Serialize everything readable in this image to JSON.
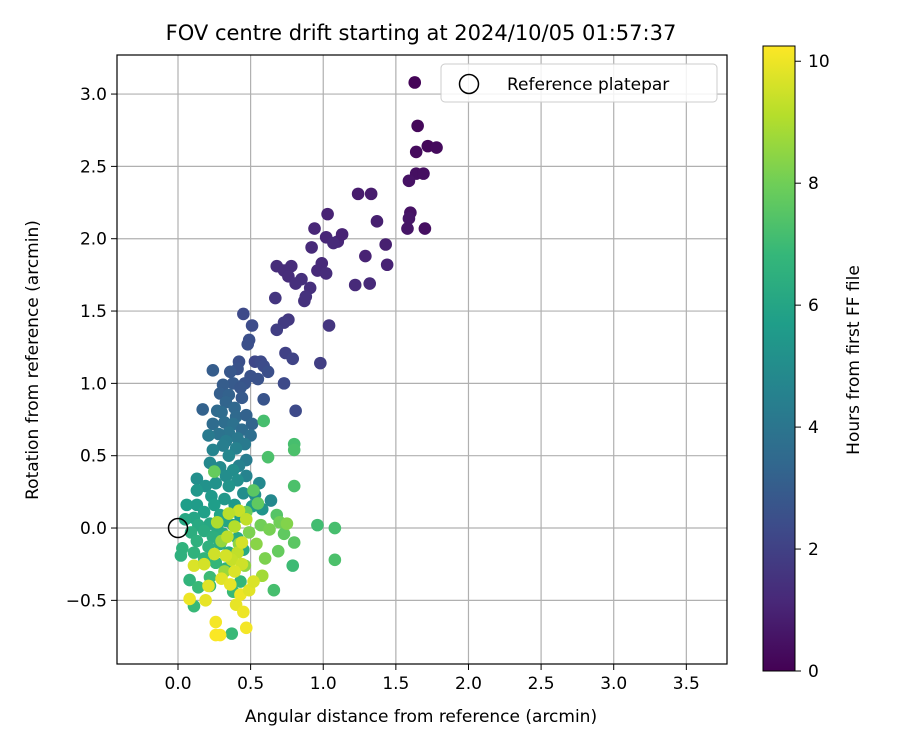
{
  "chart_data": {
    "type": "scatter",
    "title": "FOV centre drift starting at 2024/10/05 01:57:37",
    "xlabel": "Angular distance from reference (arcmin)",
    "ylabel": "Rotation from reference (arcmin)",
    "xlim": [
      -0.42,
      3.78
    ],
    "ylim": [
      -0.94,
      3.27
    ],
    "xticks": [
      0.0,
      0.5,
      1.0,
      1.5,
      2.0,
      2.5,
      3.0,
      3.5
    ],
    "xtick_labels": [
      "0.0",
      "0.5",
      "1.0",
      "1.5",
      "2.0",
      "2.5",
      "3.0",
      "3.5"
    ],
    "yticks": [
      -0.5,
      0.0,
      0.5,
      1.0,
      1.5,
      2.0,
      2.5,
      3.0
    ],
    "ytick_labels": [
      "−0.5",
      "0.0",
      "0.5",
      "1.0",
      "1.5",
      "2.0",
      "2.5",
      "3.0"
    ],
    "grid": true,
    "legend": {
      "placement": "upper right",
      "entry": "Reference platepar"
    },
    "reference_point": {
      "x": 0.0,
      "y": 0.0
    },
    "colorbar": {
      "label": "Hours from first FF file",
      "range": [
        0,
        10.25
      ],
      "ticks": [
        0,
        2,
        4,
        6,
        8,
        10
      ],
      "tick_labels": [
        "0",
        "2",
        "4",
        "6",
        "8",
        "10"
      ],
      "colormap": [
        "#440154",
        "#482878",
        "#3e4989",
        "#31688e",
        "#26828e",
        "#1f9e89",
        "#35b779",
        "#6ece58",
        "#b5de2b",
        "#fde725"
      ]
    },
    "series": [
      {
        "points": [
          [
            1.63,
            3.08,
            0.1
          ],
          [
            1.65,
            2.78,
            0.2
          ],
          [
            1.64,
            2.6,
            0.3
          ],
          [
            1.72,
            2.64,
            0.2
          ],
          [
            1.78,
            2.63,
            0.3
          ],
          [
            1.64,
            2.45,
            0.4
          ],
          [
            1.69,
            2.45,
            0.4
          ],
          [
            1.59,
            2.4,
            0.5
          ],
          [
            1.6,
            2.18,
            0.5
          ],
          [
            1.59,
            2.14,
            0.6
          ],
          [
            1.58,
            2.07,
            0.6
          ],
          [
            1.7,
            2.07,
            0.4
          ],
          [
            1.24,
            2.31,
            0.8
          ],
          [
            1.33,
            2.31,
            0.8
          ],
          [
            1.03,
            2.17,
            1.0
          ],
          [
            1.37,
            2.12,
            0.9
          ],
          [
            0.94,
            2.07,
            1.1
          ],
          [
            1.02,
            2.01,
            1.1
          ],
          [
            1.1,
            1.98,
            1.1
          ],
          [
            1.13,
            2.03,
            1.0
          ],
          [
            1.07,
            1.97,
            1.2
          ],
          [
            1.43,
            1.96,
            0.9
          ],
          [
            0.92,
            1.94,
            1.2
          ],
          [
            1.29,
            1.88,
            1.0
          ],
          [
            0.99,
            1.83,
            1.2
          ],
          [
            0.96,
            1.78,
            1.2
          ],
          [
            0.68,
            1.81,
            1.3
          ],
          [
            0.78,
            1.81,
            1.3
          ],
          [
            0.73,
            1.78,
            1.3
          ],
          [
            1.02,
            1.76,
            1.3
          ],
          [
            0.76,
            1.74,
            1.3
          ],
          [
            0.85,
            1.72,
            1.4
          ],
          [
            0.81,
            1.69,
            1.4
          ],
          [
            0.91,
            1.66,
            1.4
          ],
          [
            1.22,
            1.68,
            1.2
          ],
          [
            1.32,
            1.69,
            1.2
          ],
          [
            1.44,
            1.82,
            1.0
          ],
          [
            0.88,
            1.6,
            1.5
          ],
          [
            0.87,
            1.57,
            1.5
          ],
          [
            0.67,
            1.59,
            1.6
          ],
          [
            0.76,
            1.44,
            1.7
          ],
          [
            1.04,
            1.4,
            1.6
          ],
          [
            0.73,
            1.42,
            1.8
          ],
          [
            0.68,
            1.37,
            1.9
          ],
          [
            0.98,
            1.14,
            1.9
          ],
          [
            0.45,
            1.48,
            2.3
          ],
          [
            0.51,
            1.4,
            2.4
          ],
          [
            0.49,
            1.3,
            2.5
          ],
          [
            0.48,
            1.27,
            2.5
          ],
          [
            0.74,
            1.21,
            2.0
          ],
          [
            0.79,
            1.17,
            2.1
          ],
          [
            0.53,
            1.15,
            2.2
          ],
          [
            0.57,
            1.15,
            2.3
          ],
          [
            0.59,
            1.12,
            2.4
          ],
          [
            0.42,
            1.15,
            2.5
          ],
          [
            0.41,
            1.1,
            2.6
          ],
          [
            0.24,
            1.09,
            3.0
          ],
          [
            0.36,
            1.08,
            2.8
          ],
          [
            0.5,
            1.05,
            2.6
          ],
          [
            0.62,
            1.08,
            2.5
          ],
          [
            0.55,
            1.03,
            2.6
          ],
          [
            0.46,
            1.0,
            2.7
          ],
          [
            0.38,
            1.0,
            2.9
          ],
          [
            0.31,
            0.99,
            3.0
          ],
          [
            0.73,
            1.0,
            2.3
          ],
          [
            0.43,
            0.97,
            2.8
          ],
          [
            0.29,
            0.93,
            3.1
          ],
          [
            0.35,
            0.92,
            3.2
          ],
          [
            0.44,
            0.9,
            2.9
          ],
          [
            0.59,
            0.89,
            2.7
          ],
          [
            0.33,
            0.87,
            3.3
          ],
          [
            0.39,
            0.83,
            3.4
          ],
          [
            0.27,
            0.81,
            3.5
          ],
          [
            0.17,
            0.82,
            3.2
          ],
          [
            0.3,
            0.8,
            3.6
          ],
          [
            0.81,
            0.81,
            2.3
          ],
          [
            0.4,
            0.77,
            3.5
          ],
          [
            0.47,
            0.78,
            3.2
          ],
          [
            0.51,
            0.72,
            3.3
          ],
          [
            0.32,
            0.73,
            3.7
          ],
          [
            0.38,
            0.72,
            3.8
          ],
          [
            0.24,
            0.72,
            3.6
          ],
          [
            0.44,
            0.68,
            3.6
          ],
          [
            0.35,
            0.66,
            4.0
          ],
          [
            0.28,
            0.65,
            3.9
          ],
          [
            0.5,
            0.64,
            3.7
          ],
          [
            0.41,
            0.62,
            4.1
          ],
          [
            0.21,
            0.64,
            4.2
          ],
          [
            0.33,
            0.6,
            4.3
          ],
          [
            0.46,
            0.58,
            4.2
          ],
          [
            0.31,
            0.57,
            4.4
          ],
          [
            0.4,
            0.55,
            4.5
          ],
          [
            0.24,
            0.54,
            4.6
          ],
          [
            0.35,
            0.5,
            4.7
          ],
          [
            0.47,
            0.47,
            4.3
          ],
          [
            0.42,
            0.43,
            4.5
          ],
          [
            0.22,
            0.45,
            4.8
          ],
          [
            0.29,
            0.42,
            4.9
          ],
          [
            0.38,
            0.4,
            5.0
          ],
          [
            0.13,
            0.34,
            5.1
          ],
          [
            0.33,
            0.36,
            5.0
          ],
          [
            0.47,
            0.36,
            4.6
          ],
          [
            0.41,
            0.33,
            5.1
          ],
          [
            0.26,
            0.31,
            5.2
          ],
          [
            0.56,
            0.31,
            4.8
          ],
          [
            0.19,
            0.29,
            5.2
          ],
          [
            0.35,
            0.29,
            5.3
          ],
          [
            0.13,
            0.26,
            5.4
          ],
          [
            0.45,
            0.24,
            5.0
          ],
          [
            0.53,
            0.23,
            5.1
          ],
          [
            0.23,
            0.22,
            5.5
          ],
          [
            0.32,
            0.2,
            5.4
          ],
          [
            0.64,
            0.19,
            4.8
          ],
          [
            0.06,
            0.16,
            5.7
          ],
          [
            0.13,
            0.16,
            5.6
          ],
          [
            0.25,
            0.16,
            5.7
          ],
          [
            0.39,
            0.16,
            5.5
          ],
          [
            0.51,
            0.15,
            5.6
          ],
          [
            0.58,
            0.13,
            5.3
          ],
          [
            0.18,
            0.11,
            5.8
          ],
          [
            0.29,
            0.09,
            5.9
          ],
          [
            0.43,
            0.08,
            5.7
          ],
          [
            0.11,
            0.07,
            6.0
          ],
          [
            0.05,
            0.06,
            6.1
          ],
          [
            0.33,
            0.05,
            6.0
          ],
          [
            0.22,
            0.03,
            6.1
          ],
          [
            0.14,
            0.02,
            6.2
          ],
          [
            0.38,
            0.02,
            6.0
          ],
          [
            0.27,
            0.0,
            6.2
          ],
          [
            0.18,
            -0.02,
            6.3
          ],
          [
            0.09,
            -0.03,
            6.4
          ],
          [
            0.31,
            -0.04,
            6.3
          ],
          [
            0.24,
            -0.06,
            6.4
          ],
          [
            0.41,
            -0.07,
            6.2
          ],
          [
            0.13,
            -0.09,
            6.5
          ],
          [
            0.29,
            -0.11,
            6.4
          ],
          [
            0.21,
            -0.13,
            6.5
          ],
          [
            0.03,
            -0.14,
            6.6
          ],
          [
            0.02,
            -0.19,
            6.5
          ],
          [
            0.11,
            -0.17,
            6.6
          ],
          [
            0.35,
            -0.17,
            6.3
          ],
          [
            0.45,
            -0.15,
            6.2
          ],
          [
            0.18,
            -0.21,
            6.7
          ],
          [
            0.26,
            -0.24,
            6.8
          ],
          [
            0.08,
            -0.36,
            6.7
          ],
          [
            0.14,
            -0.41,
            6.9
          ],
          [
            0.22,
            -0.4,
            6.8
          ],
          [
            0.33,
            -0.28,
            6.6
          ],
          [
            0.38,
            -0.44,
            6.9
          ],
          [
            0.11,
            -0.54,
            6.9
          ],
          [
            0.22,
            -0.34,
            7.0
          ],
          [
            0.37,
            -0.73,
            6.9
          ],
          [
            0.43,
            -0.37,
            6.8
          ],
          [
            0.59,
            0.74,
            7.2
          ],
          [
            0.62,
            0.49,
            7.3
          ],
          [
            0.8,
            0.58,
            7.2
          ],
          [
            0.8,
            0.54,
            7.3
          ],
          [
            0.8,
            0.29,
            7.3
          ],
          [
            0.96,
            0.02,
            7.1
          ],
          [
            1.08,
            0.0,
            7.2
          ],
          [
            1.08,
            -0.22,
            7.3
          ],
          [
            0.79,
            -0.26,
            7.0
          ],
          [
            0.66,
            -0.43,
            7.2
          ],
          [
            0.52,
            0.26,
            7.6
          ],
          [
            0.25,
            0.39,
            7.8
          ],
          [
            0.55,
            0.17,
            7.7
          ],
          [
            0.68,
            0.09,
            7.5
          ],
          [
            0.73,
            -0.04,
            7.7
          ],
          [
            0.8,
            -0.1,
            7.6
          ],
          [
            0.69,
            -0.16,
            7.8
          ],
          [
            0.47,
            0.11,
            7.9
          ],
          [
            0.57,
            0.02,
            8.0
          ],
          [
            0.63,
            -0.01,
            8.1
          ],
          [
            0.49,
            -0.03,
            8.2
          ],
          [
            0.7,
            0.04,
            8.0
          ],
          [
            0.75,
            0.03,
            8.3
          ],
          [
            0.54,
            -0.11,
            8.4
          ],
          [
            0.6,
            -0.21,
            8.2
          ],
          [
            0.42,
            -0.11,
            8.5
          ],
          [
            0.3,
            -0.09,
            8.6
          ],
          [
            0.46,
            -0.26,
            8.5
          ],
          [
            0.32,
            -0.3,
            8.7
          ],
          [
            0.58,
            -0.33,
            8.8
          ],
          [
            0.27,
            0.04,
            9.0
          ],
          [
            0.39,
            0.01,
            9.1
          ],
          [
            0.34,
            -0.06,
            9.2
          ],
          [
            0.41,
            -0.17,
            9.3
          ],
          [
            0.37,
            -0.22,
            9.4
          ],
          [
            0.44,
            -0.25,
            9.5
          ],
          [
            0.33,
            -0.19,
            9.6
          ],
          [
            0.39,
            -0.3,
            9.7
          ],
          [
            0.3,
            -0.35,
            9.8
          ],
          [
            0.36,
            -0.39,
            9.9
          ],
          [
            0.43,
            -0.46,
            10.0
          ],
          [
            0.4,
            -0.53,
            9.9
          ],
          [
            0.45,
            -0.58,
            10.0
          ],
          [
            0.47,
            -0.69,
            10.1
          ],
          [
            0.26,
            -0.74,
            10.2
          ],
          [
            0.29,
            -0.74,
            10.2
          ],
          [
            0.26,
            -0.65,
            10.1
          ],
          [
            0.08,
            -0.49,
            10.0
          ],
          [
            0.19,
            -0.5,
            9.9
          ],
          [
            0.21,
            -0.4,
            9.8
          ],
          [
            0.11,
            -0.26,
            9.7
          ],
          [
            0.18,
            -0.25,
            9.6
          ],
          [
            0.25,
            -0.18,
            9.5
          ],
          [
            0.49,
            -0.43,
            9.8
          ],
          [
            0.42,
            0.12,
            9.4
          ],
          [
            0.35,
            0.1,
            9.2
          ],
          [
            0.47,
            0.06,
            9.3
          ],
          [
            0.44,
            -0.1,
            9.6
          ],
          [
            0.52,
            -0.37,
            9.7
          ]
        ]
      }
    ]
  }
}
